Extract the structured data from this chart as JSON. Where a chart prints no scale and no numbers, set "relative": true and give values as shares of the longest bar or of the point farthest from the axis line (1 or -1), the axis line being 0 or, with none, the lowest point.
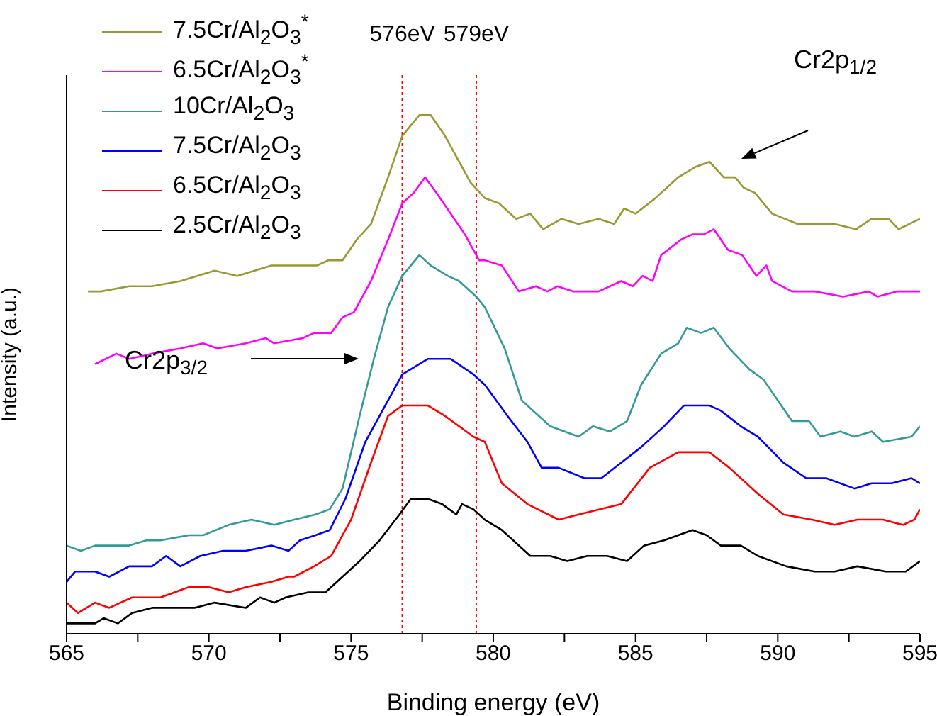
{
  "chart_data": {
    "type": "line",
    "xlabel": "Binding energy (eV)",
    "ylabel": "Intensity (a.u.)",
    "relative": true,
    "xlim": [
      565,
      595
    ],
    "xticks": [
      565,
      {
        "value": 567.5,
        "label": null
      },
      570,
      {
        "value": 572.5,
        "label": null
      },
      575,
      {
        "value": 577.5,
        "label": null
      },
      580,
      {
        "value": 582.5,
        "label": null
      },
      585,
      {
        "value": 587.5,
        "label": null
      },
      590,
      {
        "value": 592.5,
        "label": null
      },
      595
    ],
    "tick_labels": "x",
    "legend": "top left",
    "marker": "none",
    "line_style": "solid",
    "ref_lines": [
      {
        "axis": "x",
        "value": 576.8,
        "label": "576eV",
        "color": "#ff0000",
        "line_style": "dotted"
      },
      {
        "axis": "x",
        "value": 579.4,
        "label": "579eV",
        "color": "#ff0000",
        "line_style": "dotted"
      }
    ],
    "annotations": [
      "Cr2p$_{3/2}$",
      "Cr2p$_{1/2}$"
    ],
    "series": [
      {
        "name": "7.5Cr/Al$_{2}$O$_{3}$$^{*}$",
        "color": "#999933",
        "x": [
          565.75,
          566.2,
          567.2,
          568,
          569,
          570.2,
          571,
          572.2,
          573.8,
          574.2,
          574.7,
          575.2,
          575.7,
          576.3,
          576.8,
          577.4,
          577.8,
          578.3,
          578.8,
          579.2,
          579.7,
          580.2,
          580.8,
          581.3,
          581.75,
          582.4,
          583,
          583.7,
          584.25,
          584.6,
          585,
          585.7,
          586.5,
          587.1,
          587.6,
          588.1,
          588.5,
          588.8,
          589.2,
          589.8,
          590.7,
          591.3,
          592,
          592.75,
          593.3,
          593.9,
          594.25,
          595
        ],
        "values": [
          0.66,
          0.66,
          0.67,
          0.67,
          0.68,
          0.7,
          0.69,
          0.71,
          0.71,
          0.72,
          0.72,
          0.76,
          0.79,
          0.88,
          0.96,
          1,
          1,
          0.96,
          0.91,
          0.87,
          0.84,
          0.83,
          0.8,
          0.81,
          0.78,
          0.8,
          0.79,
          0.8,
          0.79,
          0.82,
          0.81,
          0.84,
          0.88,
          0.9,
          0.91,
          0.88,
          0.88,
          0.86,
          0.85,
          0.81,
          0.79,
          0.79,
          0.79,
          0.78,
          0.8,
          0.8,
          0.78,
          0.8
        ]
      },
      {
        "name": "6.5Cr/Al$_{2}$O$_{3}$$^{*}$",
        "color": "#ff00ff",
        "x": [
          566,
          566.75,
          567.2,
          568,
          569,
          569.8,
          570.3,
          571.3,
          572,
          572.3,
          573.3,
          573.7,
          574.3,
          574.7,
          575.1,
          575.7,
          576.3,
          576.8,
          577.2,
          577.6,
          578,
          578.5,
          579,
          579.5,
          579.7,
          580.3,
          580.9,
          581.5,
          581.9,
          582.25,
          582.8,
          583.7,
          584.5,
          584.9,
          585.25,
          585.6,
          585.9,
          586.6,
          587,
          587.4,
          587.75,
          588.25,
          588.75,
          589.25,
          589.6,
          589.8,
          590.5,
          591.3,
          592.3,
          593.2,
          593.5,
          594.2,
          595
        ],
        "values": [
          0.52,
          0.54,
          0.53,
          0.54,
          0.55,
          0.56,
          0.55,
          0.56,
          0.57,
          0.56,
          0.57,
          0.58,
          0.58,
          0.61,
          0.62,
          0.68,
          0.76,
          0.83,
          0.85,
          0.88,
          0.85,
          0.81,
          0.77,
          0.72,
          0.72,
          0.71,
          0.66,
          0.67,
          0.66,
          0.67,
          0.66,
          0.66,
          0.68,
          0.67,
          0.69,
          0.68,
          0.73,
          0.76,
          0.77,
          0.77,
          0.78,
          0.74,
          0.73,
          0.69,
          0.71,
          0.68,
          0.66,
          0.66,
          0.65,
          0.66,
          0.65,
          0.66,
          0.66
        ]
      },
      {
        "name": "10Cr/Al$_{2}$O$_{3}$",
        "color": "#339999",
        "x": [
          565,
          565.5,
          566,
          566.7,
          567.2,
          567.8,
          568.3,
          569.3,
          569.8,
          570.7,
          571.5,
          572.3,
          573,
          573.75,
          574.25,
          574.7,
          575.3,
          575.8,
          576.3,
          576.8,
          577.4,
          577.8,
          578.4,
          578.8,
          579.4,
          579.7,
          580.4,
          581,
          582,
          583,
          583.5,
          584.1,
          584.7,
          585.2,
          585.9,
          586.5,
          586.8,
          587.3,
          587.75,
          588.3,
          589,
          589.5,
          590.5,
          591.1,
          591.5,
          592.2,
          592.7,
          593.3,
          593.7,
          594.7,
          595
        ],
        "values": [
          0.17,
          0.16,
          0.17,
          0.17,
          0.17,
          0.18,
          0.18,
          0.19,
          0.19,
          0.21,
          0.22,
          0.21,
          0.22,
          0.23,
          0.24,
          0.28,
          0.42,
          0.53,
          0.63,
          0.69,
          0.73,
          0.71,
          0.69,
          0.68,
          0.65,
          0.63,
          0.55,
          0.45,
          0.4,
          0.38,
          0.4,
          0.39,
          0.41,
          0.48,
          0.54,
          0.56,
          0.59,
          0.58,
          0.59,
          0.55,
          0.51,
          0.49,
          0.41,
          0.41,
          0.38,
          0.39,
          0.38,
          0.39,
          0.37,
          0.38,
          0.4
        ]
      },
      {
        "name": "7.5Cr/Al$_{2}$O$_{3}$",
        "color": "#0000ff",
        "x": [
          565,
          565.3,
          566,
          566.5,
          567.2,
          568,
          568.5,
          569,
          569.7,
          570.5,
          571.3,
          572.2,
          572.8,
          573.2,
          573.75,
          574.25,
          574.8,
          575.5,
          576.2,
          576.8,
          577.7,
          578.5,
          579.3,
          579.7,
          580.5,
          581.2,
          581.7,
          582.3,
          583.2,
          583.8,
          584.5,
          585.2,
          586,
          586.7,
          587.6,
          588,
          588.7,
          589.3,
          590.2,
          591,
          591.7,
          592.7,
          593.3,
          594,
          594.7,
          595
        ],
        "values": [
          0.1,
          0.12,
          0.12,
          0.11,
          0.13,
          0.13,
          0.15,
          0.13,
          0.15,
          0.16,
          0.16,
          0.17,
          0.16,
          0.18,
          0.19,
          0.2,
          0.26,
          0.37,
          0.44,
          0.5,
          0.53,
          0.53,
          0.5,
          0.48,
          0.42,
          0.37,
          0.32,
          0.32,
          0.3,
          0.3,
          0.33,
          0.36,
          0.4,
          0.44,
          0.44,
          0.43,
          0.4,
          0.38,
          0.33,
          0.3,
          0.3,
          0.28,
          0.29,
          0.29,
          0.3,
          0.29
        ]
      },
      {
        "name": "6.5Cr/Al$_{2}$O$_{3}$",
        "color": "#ff0000",
        "x": [
          565,
          565.4,
          566,
          566.5,
          567.3,
          568.3,
          569.3,
          570,
          570.7,
          571.3,
          572.2,
          572.8,
          573,
          573.7,
          574.3,
          575,
          575.7,
          576.3,
          576.8,
          577.7,
          578.3,
          579.3,
          579.7,
          580.3,
          581.2,
          582.3,
          583,
          584.5,
          585.5,
          586.5,
          587.1,
          587.6,
          588.3,
          589.3,
          590.2,
          591.2,
          592,
          592.8,
          593.7,
          594.4,
          594.8,
          595
        ],
        "values": [
          0.06,
          0.04,
          0.06,
          0.05,
          0.07,
          0.07,
          0.09,
          0.09,
          0.08,
          0.09,
          0.1,
          0.11,
          0.11,
          0.13,
          0.15,
          0.22,
          0.33,
          0.42,
          0.44,
          0.44,
          0.42,
          0.38,
          0.37,
          0.29,
          0.25,
          0.22,
          0.23,
          0.25,
          0.32,
          0.35,
          0.35,
          0.35,
          0.32,
          0.27,
          0.23,
          0.22,
          0.21,
          0.22,
          0.22,
          0.21,
          0.22,
          0.24
        ]
      },
      {
        "name": "2.5Cr/Al$_{2}$O$_{3}$",
        "color": "#000000",
        "x": [
          565,
          565.5,
          566,
          566.3,
          566.8,
          567.3,
          568,
          568.8,
          569.5,
          570.2,
          571.3,
          571.8,
          572.3,
          572.7,
          573.5,
          574.1,
          574.7,
          575.3,
          576,
          576.7,
          577.1,
          577.7,
          578.2,
          578.7,
          578.9,
          579.3,
          579.7,
          580.3,
          581.3,
          582,
          582.6,
          583.3,
          584,
          584.7,
          585.3,
          586,
          587,
          587.5,
          588,
          588.7,
          589.3,
          590.3,
          591.3,
          592,
          592.8,
          593.8,
          594.5,
          595
        ],
        "values": [
          0.02,
          0.02,
          0.02,
          0.03,
          0.02,
          0.04,
          0.05,
          0.05,
          0.05,
          0.06,
          0.05,
          0.07,
          0.06,
          0.07,
          0.08,
          0.08,
          0.11,
          0.14,
          0.18,
          0.23,
          0.26,
          0.26,
          0.25,
          0.23,
          0.25,
          0.24,
          0.22,
          0.2,
          0.15,
          0.15,
          0.14,
          0.15,
          0.15,
          0.14,
          0.17,
          0.18,
          0.2,
          0.19,
          0.17,
          0.17,
          0.15,
          0.13,
          0.12,
          0.12,
          0.13,
          0.12,
          0.12,
          0.14
        ]
      }
    ]
  }
}
